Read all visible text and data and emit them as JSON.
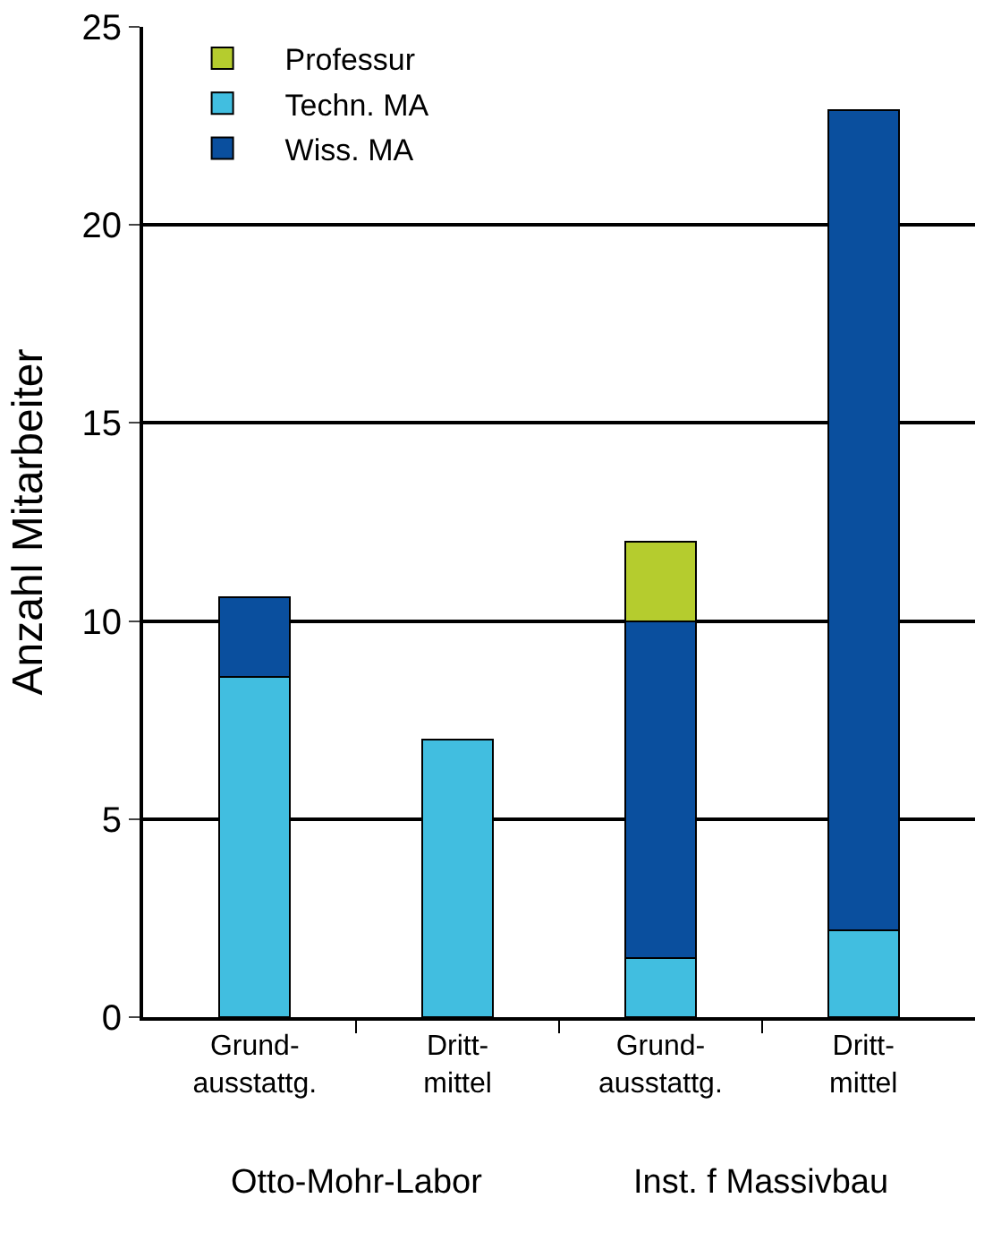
{
  "chart_data": {
    "type": "bar",
    "stacked": true,
    "ylabel": "Anzahl Mitarbeiter",
    "categories": [
      "Grund-\nausstattg.",
      "Dritt-\nmittel",
      "Grund-\nausstattg.",
      "Dritt-\nmittel"
    ],
    "series": [
      {
        "name": "Techn. MA",
        "color": "#41bee0",
        "values": [
          8.6,
          7.0,
          1.5,
          2.2
        ]
      },
      {
        "name": "Wiss. MA",
        "color": "#0a4f9e",
        "values": [
          2.0,
          null,
          8.5,
          20.7
        ]
      },
      {
        "name": "Professur",
        "color": "#b5cc2e",
        "values": [
          null,
          null,
          2.0,
          null
        ]
      }
    ],
    "ylim": [
      0,
      25
    ],
    "yticks": [
      0,
      5,
      10,
      15,
      20,
      25
    ],
    "grid": "y",
    "legend": "top left",
    "annotations": [
      "Otto-Mohr-Labor",
      "Inst. f Massivbau"
    ]
  }
}
